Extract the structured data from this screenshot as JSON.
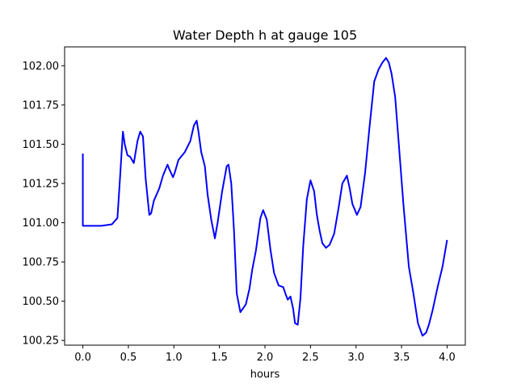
{
  "chart_data": {
    "type": "line",
    "title": "Water Depth h at gauge 105",
    "xlabel": "hours",
    "ylabel": "",
    "xlim": [
      -0.2,
      4.2
    ],
    "ylim": [
      100.22,
      102.12
    ],
    "xticks": [
      "0.0",
      "0.5",
      "1.0",
      "1.5",
      "2.0",
      "2.5",
      "3.0",
      "3.5",
      "4.0"
    ],
    "xtick_values": [
      0,
      0.5,
      1.0,
      1.5,
      2.0,
      2.5,
      3.0,
      3.5,
      4.0
    ],
    "yticks": [
      "100.25",
      "100.50",
      "100.75",
      "101.00",
      "101.25",
      "101.50",
      "101.75",
      "102.00"
    ],
    "ytick_values": [
      100.25,
      100.5,
      100.75,
      101.0,
      101.25,
      101.5,
      101.75,
      102.0
    ],
    "grid": false,
    "series": [
      {
        "color": "#0000ff",
        "x": [
          0.0,
          0.0,
          0.0,
          0.1,
          0.2,
          0.32,
          0.38,
          0.41,
          0.44,
          0.46,
          0.49,
          0.52,
          0.56,
          0.6,
          0.63,
          0.66,
          0.69,
          0.73,
          0.75,
          0.78,
          0.84,
          0.88,
          0.93,
          0.95,
          0.99,
          1.01,
          1.05,
          1.12,
          1.18,
          1.22,
          1.25,
          1.27,
          1.3,
          1.34,
          1.37,
          1.41,
          1.45,
          1.48,
          1.53,
          1.58,
          1.6,
          1.63,
          1.66,
          1.69,
          1.73,
          1.79,
          1.83,
          1.86,
          1.9,
          1.95,
          1.98,
          2.02,
          2.06,
          2.1,
          2.15,
          2.2,
          2.23,
          2.25,
          2.28,
          2.31,
          2.33,
          2.36,
          2.39,
          2.42,
          2.46,
          2.5,
          2.54,
          2.57,
          2.6,
          2.63,
          2.67,
          2.71,
          2.76,
          2.81,
          2.85,
          2.9,
          2.93,
          2.96,
          3.01,
          3.05,
          3.1,
          3.15,
          3.2,
          3.25,
          3.29,
          3.33,
          3.36,
          3.39,
          3.43,
          3.47,
          3.52,
          3.58,
          3.63,
          3.68,
          3.73,
          3.77,
          3.8,
          3.84,
          3.9,
          3.95,
          4.0
        ],
        "y": [
          101.44,
          101.2,
          100.98,
          100.98,
          100.98,
          100.99,
          101.03,
          101.3,
          101.58,
          101.5,
          101.43,
          101.42,
          101.38,
          101.52,
          101.58,
          101.55,
          101.28,
          101.05,
          101.06,
          101.14,
          101.22,
          101.3,
          101.37,
          101.34,
          101.29,
          101.32,
          101.4,
          101.45,
          101.52,
          101.62,
          101.65,
          101.58,
          101.45,
          101.36,
          101.18,
          101.02,
          100.9,
          101.0,
          101.2,
          101.36,
          101.37,
          101.25,
          100.95,
          100.55,
          100.43,
          100.48,
          100.58,
          100.7,
          100.82,
          101.03,
          101.08,
          101.02,
          100.83,
          100.68,
          100.6,
          100.59,
          100.54,
          100.51,
          100.53,
          100.45,
          100.36,
          100.35,
          100.52,
          100.85,
          101.15,
          101.27,
          101.2,
          101.05,
          100.95,
          100.87,
          100.84,
          100.86,
          100.93,
          101.1,
          101.25,
          101.3,
          101.22,
          101.12,
          101.05,
          101.1,
          101.32,
          101.62,
          101.9,
          101.98,
          102.02,
          102.05,
          102.02,
          101.95,
          101.8,
          101.5,
          101.12,
          100.72,
          100.55,
          100.36,
          100.28,
          100.3,
          100.35,
          100.44,
          100.6,
          100.72,
          100.89
        ]
      }
    ]
  }
}
